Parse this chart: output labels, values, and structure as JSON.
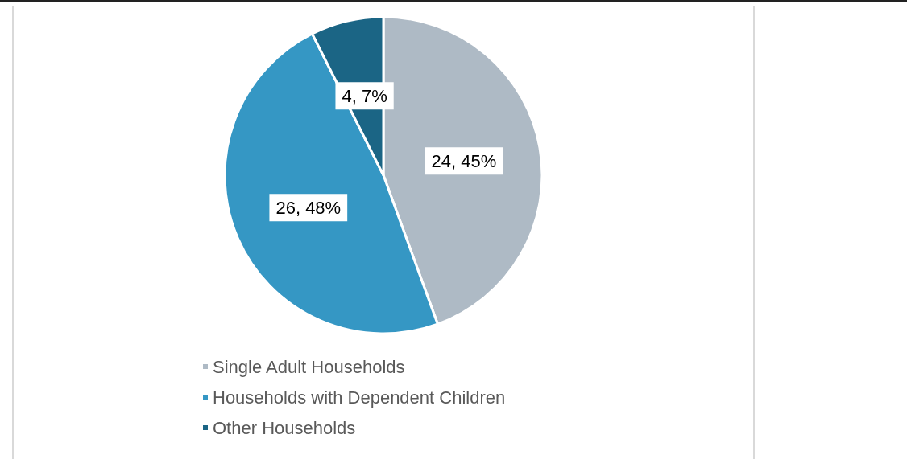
{
  "chart_data": {
    "type": "pie",
    "categories": [
      "Single Adult Households",
      "Households with Dependent Children",
      "Other Households"
    ],
    "values": [
      24,
      26,
      4
    ],
    "colors": [
      "#aebac5",
      "#3597c4",
      "#1b6585"
    ],
    "value_labels": [
      "24, 45%",
      "26, 48%",
      "4, 7%"
    ],
    "legend": "bottom"
  }
}
